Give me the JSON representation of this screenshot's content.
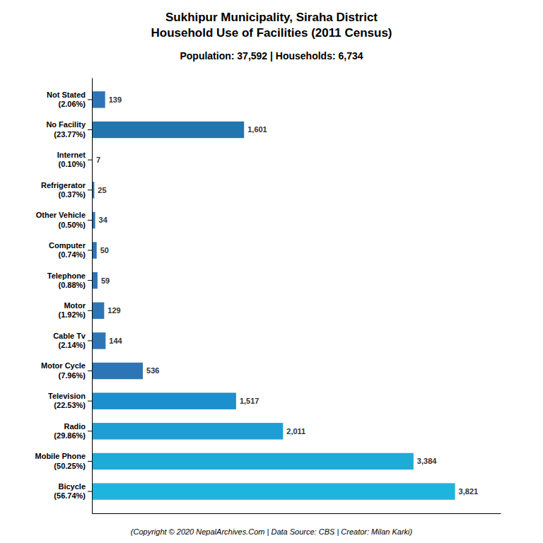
{
  "chart_data": {
    "type": "bar",
    "orientation": "horizontal",
    "title": "Sukhipur Municipality, Siraha District\nHousehold Use of Facilities (2011 Census)",
    "subtitle": "Population: 37,592 | Households: 6,734",
    "annotations": [
      "(Copyright © 2020 NepalArchives.Com | Data Source: CBS | Creator: Milan Karki)"
    ],
    "categories": [
      "Not Stated\n(2.06%)",
      "No Facility\n(23.77%)",
      "Internet\n(0.10%)",
      "Refrigerator\n(0.37%)",
      "Other Vehicle\n(0.50%)",
      "Computer\n(0.74%)",
      "Telephone\n(0.88%)",
      "Motor\n(1.92%)",
      "Cable Tv\n(2.14%)",
      "Motor Cycle\n(7.96%)",
      "Television\n(22.53%)",
      "Radio\n(29.86%)",
      "Mobile Phone\n(50.25%)",
      "Bicycle\n(56.74%)"
    ],
    "values": [
      139,
      1601,
      7,
      25,
      34,
      50,
      59,
      129,
      144,
      536,
      1517,
      2011,
      3384,
      3821
    ],
    "value_labels": [
      "139",
      "1,601",
      "7",
      "25",
      "34",
      "50",
      "59",
      "129",
      "144",
      "536",
      "1,517",
      "2,011",
      "3,384",
      "3,821"
    ],
    "colors": [
      "#2e75b6",
      "#2176ae",
      "#2e75b6",
      "#2e75b6",
      "#2e75b6",
      "#2e75b6",
      "#2e75b6",
      "#2e75b6",
      "#2e75b6",
      "#2e75b6",
      "#1c8fcc",
      "#1e9fd4",
      "#1eabd8",
      "#1eb5dc"
    ],
    "xlim": [
      0,
      4300
    ],
    "data_labels": true,
    "tick_labels": "y",
    "grid": false
  }
}
